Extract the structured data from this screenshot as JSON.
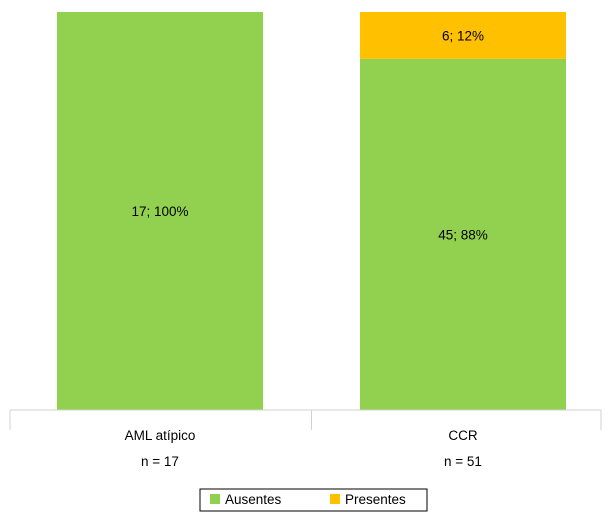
{
  "chart_data": {
    "type": "bar",
    "stacked": true,
    "normalized": true,
    "categories": [
      "AML atípico",
      "CCR"
    ],
    "category_counts": [
      "n = 17",
      "n = 51"
    ],
    "series": [
      {
        "name": "Ausentes",
        "color": "#92D050",
        "values": [
          17,
          45
        ],
        "labels": [
          "17; 100%",
          "45; 88%"
        ]
      },
      {
        "name": "Presentes",
        "color": "#FFC000",
        "values": [
          0,
          6
        ],
        "labels": [
          "",
          "6; 12%"
        ]
      }
    ],
    "ylim": [
      0,
      100
    ],
    "grid": false,
    "legend_position": "bottom"
  }
}
